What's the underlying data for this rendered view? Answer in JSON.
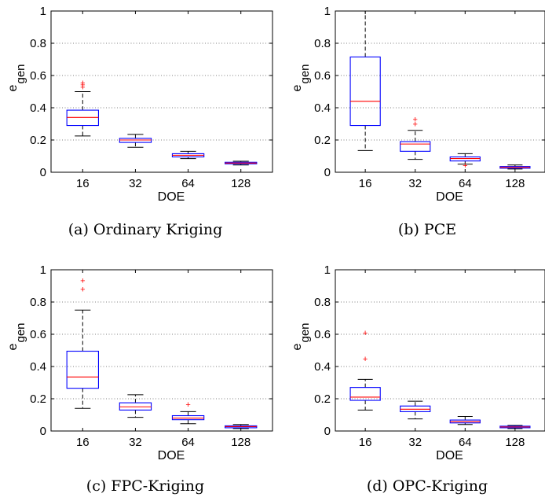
{
  "chart_data": [
    {
      "type": "box",
      "caption": "(a)  Ordinary Kriging",
      "xlabel": "DOE",
      "ylabel_main": "e",
      "ylabel_sub": "gen",
      "ylim": [
        0,
        1
      ],
      "yticks": [
        "0",
        "0.2",
        "0.4",
        "0.6",
        "0.8",
        "1"
      ],
      "categories": [
        "16",
        "32",
        "64",
        "128"
      ],
      "grid": "horizontal dotted",
      "boxes": [
        {
          "q1": 0.29,
          "median": 0.34,
          "q3": 0.385,
          "whisker_low": 0.225,
          "whisker_high": 0.5,
          "outliers": [
            0.53,
            0.545,
            0.555
          ]
        },
        {
          "q1": 0.185,
          "median": 0.2,
          "q3": 0.21,
          "whisker_low": 0.155,
          "whisker_high": 0.235,
          "outliers": []
        },
        {
          "q1": 0.095,
          "median": 0.105,
          "q3": 0.115,
          "whisker_low": 0.085,
          "whisker_high": 0.13,
          "outliers": []
        },
        {
          "q1": 0.052,
          "median": 0.057,
          "q3": 0.062,
          "whisker_low": 0.045,
          "whisker_high": 0.068,
          "outliers": []
        }
      ]
    },
    {
      "type": "box",
      "caption": "(b)  PCE",
      "xlabel": "DOE",
      "ylabel_main": "e",
      "ylabel_sub": "gen",
      "ylim": [
        0,
        1
      ],
      "yticks": [
        "0",
        "0.2",
        "0.4",
        "0.6",
        "0.8",
        "1"
      ],
      "categories": [
        "16",
        "32",
        "64",
        "128"
      ],
      "grid": "horizontal dotted",
      "boxes": [
        {
          "q1": 0.29,
          "median": 0.44,
          "q3": 0.715,
          "whisker_low": 0.135,
          "whisker_high": 1.0,
          "outliers": []
        },
        {
          "q1": 0.13,
          "median": 0.175,
          "q3": 0.19,
          "whisker_low": 0.08,
          "whisker_high": 0.26,
          "outliers": [
            0.3,
            0.33
          ]
        },
        {
          "q1": 0.07,
          "median": 0.085,
          "q3": 0.095,
          "whisker_low": 0.05,
          "whisker_high": 0.115,
          "outliers": [
            0.045
          ]
        },
        {
          "q1": 0.025,
          "median": 0.03,
          "q3": 0.036,
          "whisker_low": 0.02,
          "whisker_high": 0.045,
          "outliers": []
        }
      ]
    },
    {
      "type": "box",
      "caption": "(c)  FPC-Kriging",
      "xlabel": "DOE",
      "ylabel_main": "e",
      "ylabel_sub": "gen",
      "ylim": [
        0,
        1
      ],
      "yticks": [
        "0",
        "0.2",
        "0.4",
        "0.6",
        "0.8",
        "1"
      ],
      "categories": [
        "16",
        "32",
        "64",
        "128"
      ],
      "grid": "horizontal dotted",
      "boxes": [
        {
          "q1": 0.265,
          "median": 0.335,
          "q3": 0.495,
          "whisker_low": 0.14,
          "whisker_high": 0.75,
          "outliers": [
            0.88,
            0.935
          ]
        },
        {
          "q1": 0.13,
          "median": 0.15,
          "q3": 0.175,
          "whisker_low": 0.085,
          "whisker_high": 0.225,
          "outliers": []
        },
        {
          "q1": 0.07,
          "median": 0.08,
          "q3": 0.095,
          "whisker_low": 0.045,
          "whisker_high": 0.12,
          "outliers": [
            0.165
          ]
        },
        {
          "q1": 0.02,
          "median": 0.027,
          "q3": 0.032,
          "whisker_low": 0.015,
          "whisker_high": 0.04,
          "outliers": []
        }
      ]
    },
    {
      "type": "box",
      "caption": "(d)  OPC-Kriging",
      "xlabel": "DOE",
      "ylabel_main": "e",
      "ylabel_sub": "gen",
      "ylim": [
        0,
        1
      ],
      "yticks": [
        "0",
        "0.2",
        "0.4",
        "0.6",
        "0.8",
        "1"
      ],
      "categories": [
        "16",
        "32",
        "64",
        "128"
      ],
      "grid": "horizontal dotted",
      "boxes": [
        {
          "q1": 0.19,
          "median": 0.21,
          "q3": 0.27,
          "whisker_low": 0.13,
          "whisker_high": 0.32,
          "outliers": [
            0.45,
            0.61
          ]
        },
        {
          "q1": 0.12,
          "median": 0.135,
          "q3": 0.155,
          "whisker_low": 0.075,
          "whisker_high": 0.185,
          "outliers": []
        },
        {
          "q1": 0.05,
          "median": 0.058,
          "q3": 0.068,
          "whisker_low": 0.04,
          "whisker_high": 0.09,
          "outliers": []
        },
        {
          "q1": 0.02,
          "median": 0.025,
          "q3": 0.03,
          "whisker_low": 0.015,
          "whisker_high": 0.035,
          "outliers": []
        }
      ]
    }
  ],
  "colors": {
    "box": "#0000ff",
    "median": "#ff0000",
    "whisker": "#000000",
    "outlier": "#ff0000",
    "grid": "#555555"
  }
}
